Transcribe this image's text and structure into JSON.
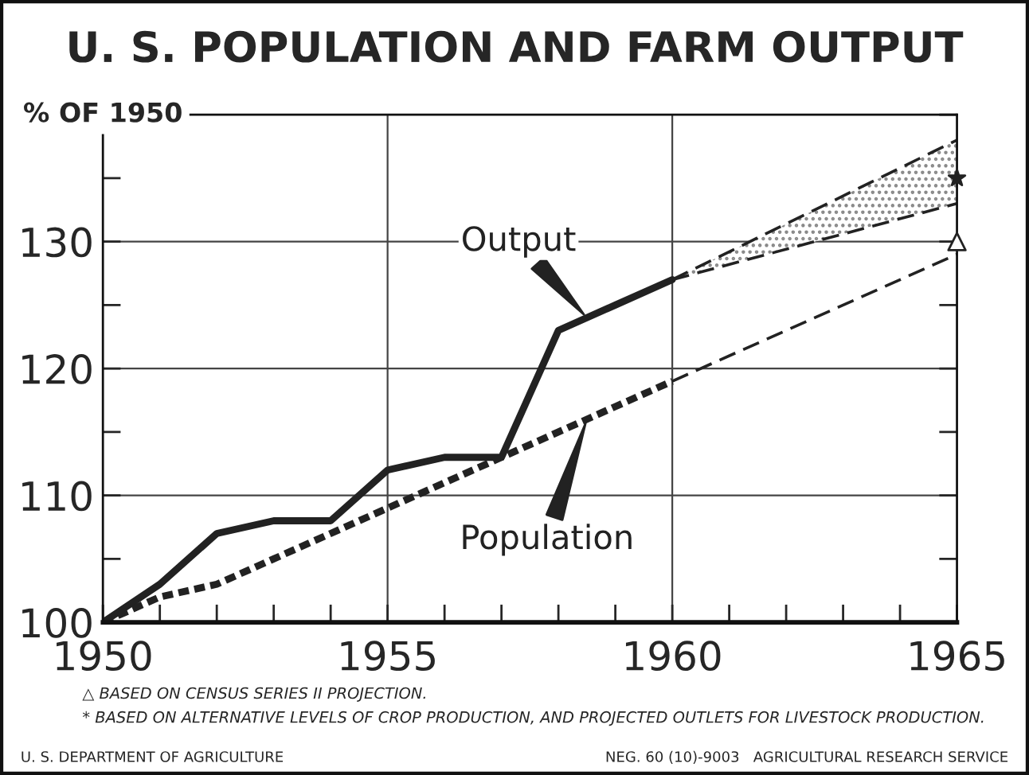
{
  "chart_data": {
    "type": "line",
    "title": "U. S. POPULATION AND FARM OUTPUT",
    "ylabel": "% OF 1950",
    "xlim": [
      1950,
      1965
    ],
    "ylim": [
      100,
      140
    ],
    "xticks": [
      1950,
      {
        "value": 1951,
        "label": null
      },
      {
        "value": 1952,
        "label": null
      },
      {
        "value": 1953,
        "label": null
      },
      {
        "value": 1954,
        "label": null
      },
      1955,
      {
        "value": 1956,
        "label": null
      },
      {
        "value": 1957,
        "label": null
      },
      {
        "value": 1958,
        "label": null
      },
      {
        "value": 1959,
        "label": null
      },
      1960,
      {
        "value": 1961,
        "label": null
      },
      {
        "value": 1962,
        "label": null
      },
      {
        "value": 1963,
        "label": null
      },
      {
        "value": 1964,
        "label": null
      },
      1965
    ],
    "yticks": [
      100,
      {
        "value": 105,
        "label": null
      },
      110,
      {
        "value": 115,
        "label": null
      },
      120,
      {
        "value": 125,
        "label": null
      },
      130,
      {
        "value": 135,
        "label": null
      },
      {
        "value": 140,
        "label": null
      }
    ],
    "grid": true,
    "series": [
      {
        "name": "Output",
        "color": "#222222",
        "line_style": "solid",
        "x": [
          1950,
          1951,
          1952,
          1953,
          1954,
          1955,
          1956,
          1957,
          1958,
          1959,
          1960
        ],
        "values": [
          100,
          103,
          107,
          108,
          108,
          112,
          113,
          113,
          123,
          125,
          127
        ]
      },
      {
        "color": "#222222",
        "line_style": "dashed",
        "x": [
          1960,
          1965
        ],
        "values": [
          127,
          138
        ]
      },
      {
        "color": "#222222",
        "line_style": "dashed",
        "x": [
          1960,
          1965
        ],
        "values": [
          127,
          133
        ],
        "lower": [
          127,
          133
        ],
        "upper": [
          127,
          138
        ]
      },
      {
        "name": "Population",
        "color": "#222222",
        "line_style": "dashed",
        "x": [
          1950,
          1951,
          1952,
          1953,
          1954,
          1955,
          1956,
          1957,
          1958,
          1959,
          1960
        ],
        "values": [
          100,
          102,
          103,
          105,
          107,
          109,
          111,
          113,
          115,
          117,
          119
        ]
      },
      {
        "color": "#222222",
        "line_style": "dashed",
        "x": [
          1960,
          1965
        ],
        "values": [
          119,
          129
        ]
      },
      {
        "type": "scatter",
        "marker": "triangle",
        "color": "#222222",
        "x": [
          1965
        ],
        "values": [
          130
        ]
      },
      {
        "type": "scatter",
        "marker": "star",
        "color": "#222222",
        "x": [
          1965
        ],
        "values": [
          135
        ]
      }
    ],
    "annotations": [
      "△ BASED ON CENSUS SERIES II PROJECTION.",
      "* BASED ON ALTERNATIVE LEVELS OF CROP PRODUCTION, AND PROJECTED OUTLETS FOR LIVESTOCK PRODUCTION.",
      "U. S. DEPARTMENT OF AGRICULTURE",
      "NEG. 60 (10)-9003   AGRICULTURAL RESEARCH SERVICE"
    ]
  }
}
